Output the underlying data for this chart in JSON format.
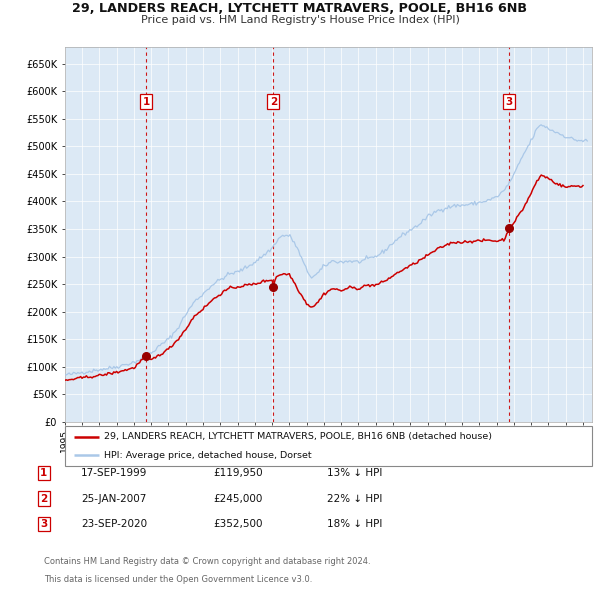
{
  "title_line1": "29, LANDERS REACH, LYTCHETT MATRAVERS, POOLE, BH16 6NB",
  "title_line2": "Price paid vs. HM Land Registry's House Price Index (HPI)",
  "plot_bg_color": "#dce9f5",
  "hpi_color": "#aac8e8",
  "price_color": "#cc0000",
  "marker_color": "#990000",
  "dashed_line_color": "#cc0000",
  "yticks": [
    0,
    50000,
    100000,
    150000,
    200000,
    250000,
    300000,
    350000,
    400000,
    450000,
    500000,
    550000,
    600000,
    650000
  ],
  "ytick_labels": [
    "£0",
    "£50K",
    "£100K",
    "£150K",
    "£200K",
    "£250K",
    "£300K",
    "£350K",
    "£400K",
    "£450K",
    "£500K",
    "£550K",
    "£600K",
    "£650K"
  ],
  "xmin": 1995.0,
  "xmax": 2025.5,
  "ymin": 0,
  "ymax": 680000,
  "transactions": [
    {
      "num": 1,
      "date": "17-SEP-1999",
      "year": 1999.72,
      "price": 119950,
      "pct": "13%",
      "dir": "↓"
    },
    {
      "num": 2,
      "date": "25-JAN-2007",
      "year": 2007.07,
      "price": 245000,
      "pct": "22%",
      "dir": "↓"
    },
    {
      "num": 3,
      "date": "23-SEP-2020",
      "year": 2020.72,
      "price": 352500,
      "pct": "18%",
      "dir": "↓"
    }
  ],
  "legend_line1": "29, LANDERS REACH, LYTCHETT MATRAVERS, POOLE, BH16 6NB (detached house)",
  "legend_line2": "HPI: Average price, detached house, Dorset",
  "footnote1": "Contains HM Land Registry data © Crown copyright and database right 2024.",
  "footnote2": "This data is licensed under the Open Government Licence v3.0."
}
